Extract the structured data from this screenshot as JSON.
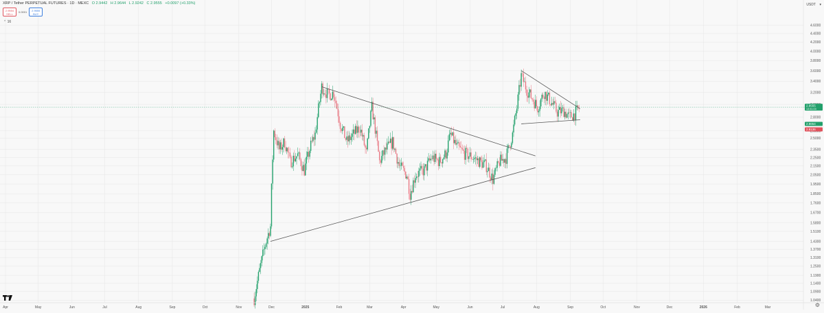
{
  "header": {
    "symbol": "XRP / Tether PERPETUAL FUTURES · 1D · MEXC",
    "open": "O 2.9442",
    "high": "H 2.9644",
    "low": "L 2.9242",
    "close": "C 2.9555",
    "change": "+0.0097 (+0.33%)",
    "sell_price": "2.9554",
    "sell_label": "SELL",
    "buy_price": "2.9555",
    "buy_label": "BUY",
    "spread": "0.0001",
    "indicator_toggle": "⌃ 16",
    "currency": "USDT",
    "currency_arrow": "▾"
  },
  "price_tags": [
    {
      "price": 2.9555,
      "line1": "2.9555",
      "line2": "13:51:03",
      "color": "#22a06b"
    },
    {
      "price": 2.7,
      "line1": "2.8654",
      "line2": "",
      "color": "#22a06b"
    },
    {
      "price": 2.62,
      "line1": "2.8136",
      "line2": "",
      "color": "#e0525c"
    }
  ],
  "colors": {
    "up": "#22a06b",
    "down": "#e87a85",
    "trendline": "#555555",
    "grid": "#e6e6e6",
    "axis_text": "#555555"
  },
  "chart_data": {
    "type": "candlestick",
    "yscale": "log",
    "ylim": [
      1.03,
      4.72
    ],
    "ylabels": [
      "4.6000",
      "4.4000",
      "4.2000",
      "4.0000",
      "3.8000",
      "3.6000",
      "3.4000",
      "3.2000",
      "3.0000",
      "2.8000",
      "2.6000",
      "2.5000",
      "2.3500",
      "2.2500",
      "2.1500",
      "2.0500",
      "1.9500",
      "1.8500",
      "1.7600",
      "1.6700",
      "1.5800",
      "1.5100",
      "1.4300",
      "1.3700",
      "1.3100",
      "1.2500",
      "1.1900",
      "1.1400",
      "1.0900",
      "1.0400"
    ],
    "xlabels": [
      "Apr",
      "May",
      "Jun",
      "Jul",
      "Aug",
      "Sep",
      "Oct",
      "Nov",
      "Dec",
      "2025",
      "Feb",
      "Mar",
      "Apr",
      "May",
      "Jun",
      "Jul",
      "Aug",
      "Sep",
      "Oct",
      "Nov",
      "Dec",
      "2026",
      "Feb",
      "Mar"
    ],
    "xstart": "2024-04-01",
    "xend": "2026-03-01",
    "trendlines": [
      {
        "from": [
          "2024-11-30",
          1.43
        ],
        "to": [
          "2025-07-31",
          2.13
        ]
      },
      {
        "from": [
          "2025-01-16",
          3.3
        ],
        "to": [
          "2025-07-31",
          2.27
        ]
      },
      {
        "from": [
          "2025-07-18",
          3.6
        ],
        "to": [
          "2025-09-10",
          2.93
        ]
      },
      {
        "from": [
          "2025-07-18",
          2.7
        ],
        "to": [
          "2025-09-10",
          2.76
        ]
      }
    ],
    "price_path": [
      [
        "2024-11-15",
        1.05
      ],
      [
        "2024-11-20",
        1.22
      ],
      [
        "2024-11-25",
        1.4
      ],
      [
        "2024-11-30",
        1.55
      ],
      [
        "2024-12-03",
        2.6
      ],
      [
        "2024-12-08",
        2.35
      ],
      [
        "2024-12-13",
        2.45
      ],
      [
        "2024-12-18",
        2.2
      ],
      [
        "2024-12-25",
        2.28
      ],
      [
        "2024-12-31",
        2.1
      ],
      [
        "2025-01-06",
        2.4
      ],
      [
        "2025-01-10",
        2.55
      ],
      [
        "2025-01-16",
        3.3
      ],
      [
        "2025-01-22",
        3.15
      ],
      [
        "2025-01-27",
        3.2
      ],
      [
        "2025-02-02",
        2.7
      ],
      [
        "2025-02-08",
        2.45
      ],
      [
        "2025-02-14",
        2.55
      ],
      [
        "2025-02-20",
        2.65
      ],
      [
        "2025-02-26",
        2.3
      ],
      [
        "2025-03-03",
        2.95
      ],
      [
        "2025-03-10",
        2.2
      ],
      [
        "2025-03-16",
        2.35
      ],
      [
        "2025-03-22",
        2.45
      ],
      [
        "2025-03-28",
        2.15
      ],
      [
        "2025-04-04",
        2.05
      ],
      [
        "2025-04-07",
        1.85
      ],
      [
        "2025-04-12",
        2.05
      ],
      [
        "2025-04-20",
        2.1
      ],
      [
        "2025-04-27",
        2.25
      ],
      [
        "2025-05-04",
        2.2
      ],
      [
        "2025-05-10",
        2.3
      ],
      [
        "2025-05-14",
        2.55
      ],
      [
        "2025-05-20",
        2.38
      ],
      [
        "2025-05-27",
        2.3
      ],
      [
        "2025-06-04",
        2.25
      ],
      [
        "2025-06-10",
        2.2
      ],
      [
        "2025-06-16",
        2.15
      ],
      [
        "2025-06-22",
        2.0
      ],
      [
        "2025-06-28",
        2.2
      ],
      [
        "2025-07-04",
        2.25
      ],
      [
        "2025-07-10",
        2.55
      ],
      [
        "2025-07-14",
        2.95
      ],
      [
        "2025-07-18",
        3.5
      ],
      [
        "2025-07-23",
        3.25
      ],
      [
        "2025-07-28",
        3.1
      ],
      [
        "2025-08-02",
        2.95
      ],
      [
        "2025-08-08",
        3.2
      ],
      [
        "2025-08-14",
        3.05
      ],
      [
        "2025-08-20",
        2.88
      ],
      [
        "2025-08-26",
        2.9
      ],
      [
        "2025-08-31",
        2.8
      ],
      [
        "2025-09-05",
        2.85
      ],
      [
        "2025-09-10",
        2.9555
      ]
    ]
  }
}
